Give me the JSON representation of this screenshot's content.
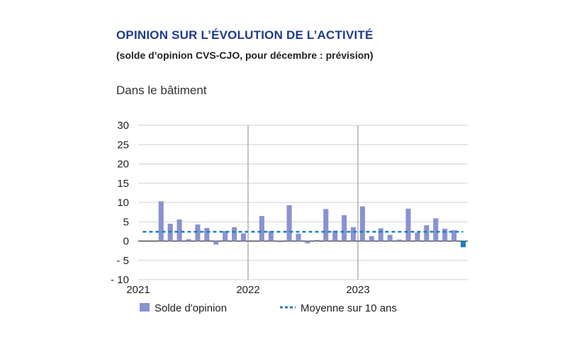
{
  "title": "OPINION SUR L’ÉVOLUTION DE L’ACTIVITÉ",
  "subtitle": "(solde d’opinion CVS-CJO, pour décembre : prévision)",
  "section_label": "Dans le bâtiment",
  "colors": {
    "bar": "#8a93cf",
    "average": "#1f7fbf",
    "grid": "#d0d0d0",
    "year_line": "#888888",
    "title": "#1f3c88"
  },
  "chart_data": {
    "type": "bar",
    "ylim": [
      -10,
      30
    ],
    "yticks": [
      30,
      25,
      20,
      15,
      10,
      5,
      0,
      -5,
      -10
    ],
    "ytick_labels": [
      "30",
      "25",
      "20",
      "15",
      "10",
      "5",
      "0",
      "- 5",
      "- 10"
    ],
    "year_labels": [
      "2021",
      "2022",
      "2023"
    ],
    "grid": true,
    "legend_position": "bottom",
    "series": [
      {
        "name": "Solde d'opinion",
        "type": "bar",
        "x": [
          "2021-01",
          "2021-02",
          "2021-03",
          "2021-04",
          "2021-05",
          "2021-06",
          "2021-07",
          "2021-08",
          "2021-09",
          "2021-10",
          "2021-11",
          "2021-12",
          "2022-01",
          "2022-02",
          "2022-03",
          "2022-04",
          "2022-05",
          "2022-06",
          "2022-07",
          "2022-08",
          "2022-09",
          "2022-10",
          "2022-11",
          "2022-12",
          "2023-01",
          "2023-02",
          "2023-03",
          "2023-04",
          "2023-05",
          "2023-06",
          "2023-07",
          "2023-08",
          "2023-09",
          "2023-10",
          "2023-11",
          "2023-12"
        ],
        "values": [
          0,
          0,
          10.3,
          4.5,
          5.6,
          0.5,
          4.3,
          3.4,
          -0.9,
          2.6,
          3.6,
          2.0,
          0,
          6.5,
          2.6,
          -0.3,
          9.3,
          1.9,
          -0.6,
          0.3,
          8.3,
          2.7,
          6.7,
          3.6,
          9.0,
          1.3,
          3.3,
          1.6,
          0.4,
          8.4,
          2.2,
          4.1,
          5.9,
          3.2,
          2.8,
          -1.6
        ],
        "forecast_last": true
      },
      {
        "name": "Moyenne sur 10 ans",
        "type": "line",
        "values": [
          2.4
        ]
      }
    ]
  }
}
